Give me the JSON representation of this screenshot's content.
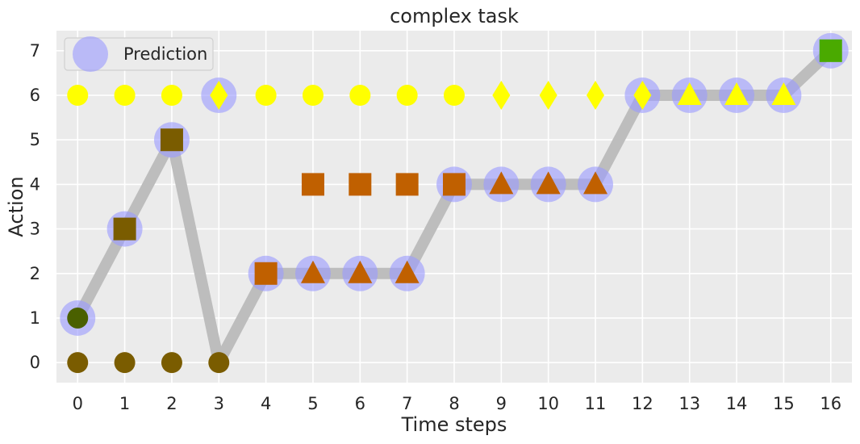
{
  "chart_data": {
    "type": "scatter",
    "title": "complex task",
    "xlabel": "Time steps",
    "ylabel": "Action",
    "xlim": [
      -0.45,
      16.45
    ],
    "ylim": [
      -0.45,
      7.45
    ],
    "x_ticks": [
      0,
      1,
      2,
      3,
      4,
      5,
      6,
      7,
      8,
      9,
      10,
      11,
      12,
      13,
      14,
      15,
      16
    ],
    "y_ticks": [
      0,
      1,
      2,
      3,
      4,
      5,
      6,
      7
    ],
    "grid": true,
    "legend": {
      "placement": "top-left",
      "entries": [
        "Prediction"
      ]
    },
    "colors": {
      "background": "#ebebeb",
      "grid": "#ffffff",
      "path": "#bdbdbd",
      "prediction": "#9999ff",
      "yellow": "#ffff00",
      "dark_olive": "#7a5c00",
      "dark_green": "#4a6000",
      "orange": "#c06000",
      "green": "#4aaa00"
    },
    "path": {
      "x": [
        0,
        1,
        2,
        3,
        4,
        5,
        6,
        7,
        8,
        9,
        10,
        11,
        12,
        13,
        14,
        15,
        16
      ],
      "y": [
        1,
        3,
        5,
        0,
        2,
        2,
        2,
        2,
        4,
        4,
        4,
        4,
        6,
        6,
        6,
        6,
        7
      ]
    },
    "series": [
      {
        "name": "Prediction",
        "x": [
          0,
          1,
          2,
          3,
          4,
          5,
          6,
          7,
          8,
          9,
          10,
          11,
          12,
          13,
          14,
          15,
          16
        ],
        "y": [
          1,
          3,
          5,
          6,
          2,
          2,
          2,
          2,
          4,
          4,
          4,
          4,
          6,
          6,
          6,
          6,
          7
        ]
      }
    ],
    "markers": [
      {
        "x": 0,
        "y": 6,
        "shape": "circle",
        "color": "#ffff00"
      },
      {
        "x": 1,
        "y": 6,
        "shape": "circle",
        "color": "#ffff00"
      },
      {
        "x": 2,
        "y": 6,
        "shape": "circle",
        "color": "#ffff00"
      },
      {
        "x": 3,
        "y": 6,
        "shape": "diamond",
        "color": "#ffff00"
      },
      {
        "x": 4,
        "y": 6,
        "shape": "circle",
        "color": "#ffff00"
      },
      {
        "x": 5,
        "y": 6,
        "shape": "circle",
        "color": "#ffff00"
      },
      {
        "x": 6,
        "y": 6,
        "shape": "circle",
        "color": "#ffff00"
      },
      {
        "x": 7,
        "y": 6,
        "shape": "circle",
        "color": "#ffff00"
      },
      {
        "x": 8,
        "y": 6,
        "shape": "circle",
        "color": "#ffff00"
      },
      {
        "x": 9,
        "y": 6,
        "shape": "diamond",
        "color": "#ffff00"
      },
      {
        "x": 10,
        "y": 6,
        "shape": "diamond",
        "color": "#ffff00"
      },
      {
        "x": 11,
        "y": 6,
        "shape": "diamond",
        "color": "#ffff00"
      },
      {
        "x": 12,
        "y": 6,
        "shape": "diamond",
        "color": "#ffff00"
      },
      {
        "x": 13,
        "y": 6,
        "shape": "triangle",
        "color": "#ffff00"
      },
      {
        "x": 14,
        "y": 6,
        "shape": "triangle",
        "color": "#ffff00"
      },
      {
        "x": 15,
        "y": 6,
        "shape": "triangle",
        "color": "#ffff00"
      },
      {
        "x": 0,
        "y": 0,
        "shape": "circle",
        "color": "#7a5c00"
      },
      {
        "x": 1,
        "y": 0,
        "shape": "circle",
        "color": "#7a5c00"
      },
      {
        "x": 2,
        "y": 0,
        "shape": "circle",
        "color": "#7a5c00"
      },
      {
        "x": 3,
        "y": 0,
        "shape": "circle",
        "color": "#7a5c00"
      },
      {
        "x": 0,
        "y": 1,
        "shape": "circle",
        "color": "#4a6000"
      },
      {
        "x": 1,
        "y": 3,
        "shape": "square",
        "color": "#7a5c00"
      },
      {
        "x": 2,
        "y": 5,
        "shape": "square",
        "color": "#7a5c00"
      },
      {
        "x": 4,
        "y": 2,
        "shape": "square",
        "color": "#c06000"
      },
      {
        "x": 5,
        "y": 2,
        "shape": "triangle",
        "color": "#c06000"
      },
      {
        "x": 6,
        "y": 2,
        "shape": "triangle",
        "color": "#c06000"
      },
      {
        "x": 7,
        "y": 2,
        "shape": "triangle",
        "color": "#c06000"
      },
      {
        "x": 5,
        "y": 4,
        "shape": "square",
        "color": "#c06000"
      },
      {
        "x": 6,
        "y": 4,
        "shape": "square",
        "color": "#c06000"
      },
      {
        "x": 7,
        "y": 4,
        "shape": "square",
        "color": "#c06000"
      },
      {
        "x": 8,
        "y": 4,
        "shape": "square",
        "color": "#c06000"
      },
      {
        "x": 9,
        "y": 4,
        "shape": "triangle",
        "color": "#c06000"
      },
      {
        "x": 10,
        "y": 4,
        "shape": "triangle",
        "color": "#c06000"
      },
      {
        "x": 11,
        "y": 4,
        "shape": "triangle",
        "color": "#c06000"
      },
      {
        "x": 16,
        "y": 7,
        "shape": "square",
        "color": "#4aaa00"
      }
    ]
  }
}
